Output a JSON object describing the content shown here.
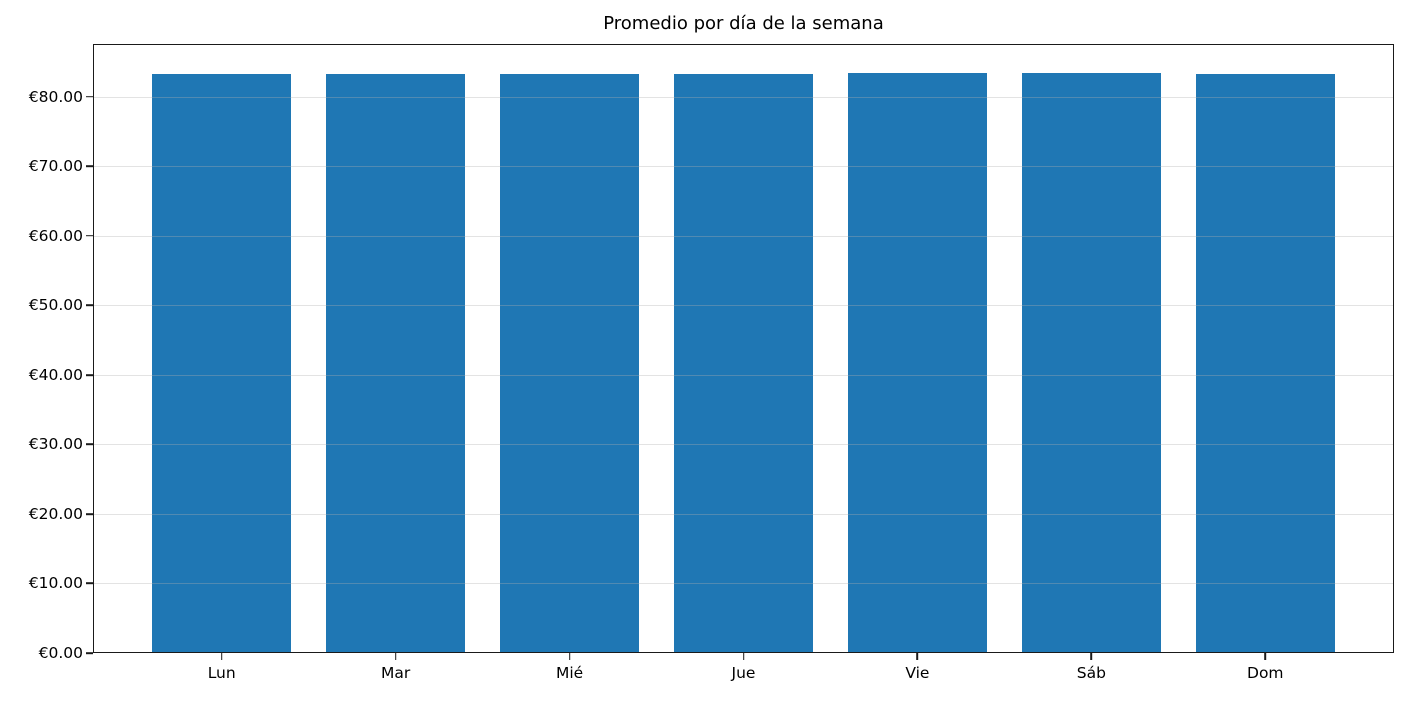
{
  "chart_data": {
    "type": "bar",
    "title": "Promedio por día de la semana",
    "categories": [
      "Lun",
      "Mar",
      "Mié",
      "Jue",
      "Vie",
      "Sáb",
      "Dom"
    ],
    "values": [
      83.3,
      83.3,
      83.3,
      83.3,
      83.4,
      83.4,
      83.3
    ],
    "y_tick_values": [
      0,
      10,
      20,
      30,
      40,
      50,
      60,
      70,
      80
    ],
    "y_tick_labels": [
      "€0.00",
      "€10.00",
      "€20.00",
      "€30.00",
      "€40.00",
      "€50.00",
      "€60.00",
      "€70.00",
      "€80.00"
    ],
    "ylim": [
      0,
      87.6
    ],
    "xlim": [
      -0.74,
      6.74
    ],
    "bar_width_units": 0.8,
    "bar_color": "#1f77b4",
    "grid": true,
    "grid_color": "#b0b0b0",
    "grid_opacity": 0.35,
    "axis_color": "#1a1a1a",
    "background_color": "#ffffff",
    "legend": "none",
    "xlabel": "",
    "ylabel": ""
  }
}
